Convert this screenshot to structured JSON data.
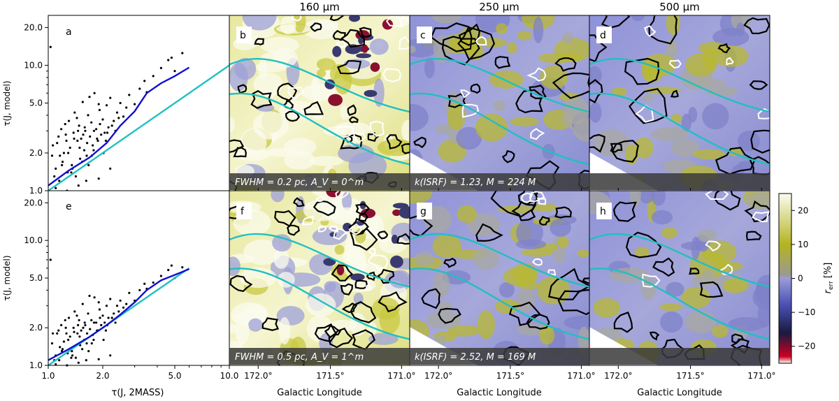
{
  "column_titles": [
    "160 μm",
    "250 μm",
    "500 μm"
  ],
  "colorbar": {
    "label": "r_err [%]",
    "ticks": [
      "20",
      "10",
      "0",
      "−10",
      "−20"
    ],
    "tick_values": [
      20,
      10,
      0,
      -10,
      -20
    ],
    "range": [
      -25,
      25
    ]
  },
  "map_xlabel": "Galactic Longitude",
  "map_xticks": [
    "172.0°",
    "171.5°",
    "171.0°"
  ],
  "scatter_xlabel": "τ(J, 2MASS)",
  "scatter_ylabel": "τ(J, model)",
  "scatter_xticks": [
    "1.0",
    "2.0",
    "5.0",
    "10.0"
  ],
  "scatter_yticks": [
    "1.0",
    "2.0",
    "5.0",
    "10.0",
    "20.0"
  ],
  "panel_letters": {
    "a": "a",
    "b": "b",
    "c": "c",
    "d": "d",
    "e": "e",
    "f": "f",
    "g": "g",
    "h": "h"
  },
  "captions": {
    "row1_b": "FWHM = 0.2 pc,  A_V = 0^m",
    "row1_c": "k(ISRF) = 1.23,  M = 224 M",
    "row2_f": "FWHM = 0.5 pc,  A_V = 1^m",
    "row2_g": "k(ISRF) = 2.52,  M = 169 M"
  },
  "colors": {
    "trend_blue": "#1010d0",
    "one_to_one": "#20c0c0",
    "contour_black": "#000000",
    "contour_white": "#ffffff",
    "positive": "#b8b820",
    "negative": "#6f72c8"
  },
  "chart_data": [
    {
      "type": "scatter",
      "panel": "a",
      "xlabel": "",
      "ylabel": "τ(J, model)",
      "log_x": true,
      "log_y": true,
      "xlim": [
        1.0,
        10.0
      ],
      "ylim": [
        1.0,
        25.0
      ],
      "series": [
        {
          "kind": "points",
          "x": [
            1.05,
            1.1,
            1.12,
            1.15,
            1.18,
            1.2,
            1.22,
            1.25,
            1.28,
            1.3,
            1.32,
            1.35,
            1.38,
            1.4,
            1.42,
            1.45,
            1.48,
            1.5,
            1.52,
            1.55,
            1.58,
            1.6,
            1.63,
            1.66,
            1.7,
            1.73,
            1.76,
            1.8,
            1.84,
            1.88,
            1.92,
            1.96,
            2.0,
            2.05,
            2.1,
            2.15,
            2.2,
            2.3,
            2.4,
            2.5,
            2.6,
            2.8,
            3.0,
            3.2,
            3.5,
            3.8,
            4.2,
            4.6,
            5.0,
            5.5,
            1.08,
            1.14,
            1.19,
            1.24,
            1.29,
            1.34,
            1.39,
            1.44,
            1.49,
            1.54,
            1.59,
            1.64,
            1.69,
            1.74,
            1.79,
            1.86,
            1.93,
            2.02,
            2.12,
            2.25,
            2.45,
            2.7,
            1.06,
            1.16,
            1.26,
            1.36,
            1.46,
            1.56,
            1.67,
            1.78,
            1.9,
            2.08,
            2.35,
            1.03,
            1.27,
            1.47,
            1.62,
            1.9,
            2.2,
            3.4,
            4.8,
            1.1
          ],
          "y": [
            1.9,
            1.5,
            2.4,
            1.2,
            3.1,
            1.7,
            2.0,
            2.8,
            1.4,
            3.6,
            2.2,
            1.6,
            2.9,
            4.2,
            1.3,
            2.5,
            3.3,
            1.8,
            2.6,
            5.1,
            2.1,
            3.0,
            1.9,
            4.0,
            2.7,
            3.5,
            2.3,
            6.0,
            3.1,
            2.5,
            4.4,
            2.8,
            3.7,
            2.9,
            4.8,
            3.2,
            5.5,
            3.6,
            4.2,
            5.0,
            3.9,
            5.8,
            4.9,
            6.5,
            6.1,
            8.2,
            9.5,
            11.0,
            9.0,
            12.5,
            1.3,
            2.7,
            1.6,
            3.4,
            2.0,
            1.4,
            2.6,
            3.8,
            2.2,
            1.7,
            3.2,
            2.4,
            5.6,
            1.9,
            3.0,
            2.6,
            3.4,
            2.0,
            2.9,
            3.3,
            3.8,
            4.6,
            2.3,
            1.9,
            2.5,
            1.5,
            3.0,
            2.8,
            1.6,
            2.1,
            4.9,
            2.5,
            3.0,
            14.0,
            1.0,
            1.1,
            1.2,
            1.25,
            1.5,
            7.5,
            11.5,
            1.05
          ]
        },
        {
          "kind": "line",
          "name": "",
          "x": [
            1.0,
            1.3,
            1.7,
            2.1,
            2.5,
            3.0,
            3.5,
            4.2,
            5.0,
            6.0
          ],
          "y": [
            1.1,
            1.45,
            1.85,
            2.4,
            3.3,
            4.3,
            6.0,
            7.2,
            8.2,
            9.6
          ]
        },
        {
          "kind": "line",
          "name": "",
          "x": [
            1.0,
            10.0
          ],
          "y": [
            1.0,
            10.0
          ]
        }
      ]
    },
    {
      "type": "scatter",
      "panel": "e",
      "xlabel": "τ(J, 2MASS)",
      "ylabel": "τ(J, model)",
      "log_x": true,
      "log_y": true,
      "xlim": [
        1.0,
        10.0
      ],
      "ylim": [
        1.0,
        25.0
      ],
      "series": [
        {
          "kind": "points",
          "x": [
            1.05,
            1.1,
            1.12,
            1.15,
            1.18,
            1.2,
            1.22,
            1.25,
            1.28,
            1.3,
            1.32,
            1.35,
            1.38,
            1.4,
            1.42,
            1.45,
            1.48,
            1.5,
            1.52,
            1.55,
            1.58,
            1.6,
            1.63,
            1.66,
            1.7,
            1.73,
            1.76,
            1.8,
            1.84,
            1.88,
            1.92,
            1.96,
            2.0,
            2.05,
            2.1,
            2.15,
            2.2,
            2.3,
            2.4,
            2.5,
            2.6,
            2.8,
            3.0,
            3.2,
            3.5,
            3.8,
            4.2,
            4.6,
            5.0,
            5.5,
            1.08,
            1.14,
            1.19,
            1.24,
            1.29,
            1.34,
            1.39,
            1.44,
            1.49,
            1.54,
            1.59,
            1.64,
            1.69,
            1.74,
            1.79,
            1.86,
            1.93,
            2.02,
            2.12,
            2.25,
            2.45,
            2.7,
            1.06,
            1.16,
            1.26,
            1.36,
            1.46,
            1.56,
            1.67,
            1.78,
            1.9,
            2.08,
            2.35,
            1.03,
            1.27,
            1.47,
            1.62,
            1.9,
            2.2,
            3.4,
            4.8,
            1.1
          ],
          "y": [
            1.5,
            1.2,
            1.8,
            1.1,
            2.1,
            1.35,
            1.55,
            2.0,
            1.25,
            2.4,
            1.7,
            1.3,
            2.0,
            2.7,
            1.15,
            1.8,
            2.3,
            1.45,
            1.9,
            3.1,
            1.6,
            2.1,
            1.5,
            2.6,
            1.95,
            2.3,
            1.75,
            3.5,
            2.2,
            1.9,
            2.8,
            2.1,
            2.5,
            2.2,
            3.0,
            2.4,
            3.4,
            2.6,
            3.0,
            3.3,
            2.9,
            3.8,
            3.3,
            4.0,
            4.1,
            4.6,
            5.2,
            5.8,
            5.0,
            6.1,
            1.1,
            1.9,
            1.3,
            2.3,
            1.6,
            1.15,
            1.85,
            2.5,
            1.7,
            1.35,
            2.2,
            1.8,
            3.6,
            1.5,
            2.2,
            1.9,
            2.4,
            1.6,
            2.1,
            2.4,
            2.7,
            3.1,
            1.8,
            1.4,
            1.8,
            1.2,
            2.1,
            2.0,
            1.3,
            1.6,
            3.2,
            1.9,
            2.2,
            7.0,
            1.0,
            1.05,
            1.1,
            1.12,
            1.2,
            4.5,
            6.3,
            1.02
          ]
        },
        {
          "kind": "line",
          "name": "",
          "x": [
            1.0,
            1.3,
            1.7,
            2.1,
            2.5,
            3.0,
            3.5,
            4.2,
            5.0,
            6.0
          ],
          "y": [
            1.1,
            1.35,
            1.7,
            2.1,
            2.55,
            3.2,
            4.0,
            4.8,
            5.3,
            5.9
          ]
        },
        {
          "kind": "line",
          "name": "",
          "x": [
            1.0,
            6.0
          ],
          "y": [
            1.0,
            6.0
          ]
        }
      ]
    },
    {
      "type": "heatmap",
      "panels": [
        "b",
        "c",
        "d",
        "f",
        "g",
        "h"
      ],
      "xlabel": "Galactic Longitude",
      "xticks": [
        "172.0°",
        "171.5°",
        "171.0°"
      ],
      "colorbar_range": [
        -25,
        25
      ],
      "description_mean_level": {
        "b": 15,
        "c": 2,
        "d": -2,
        "f": 12,
        "g": 1,
        "h": -1
      }
    }
  ]
}
